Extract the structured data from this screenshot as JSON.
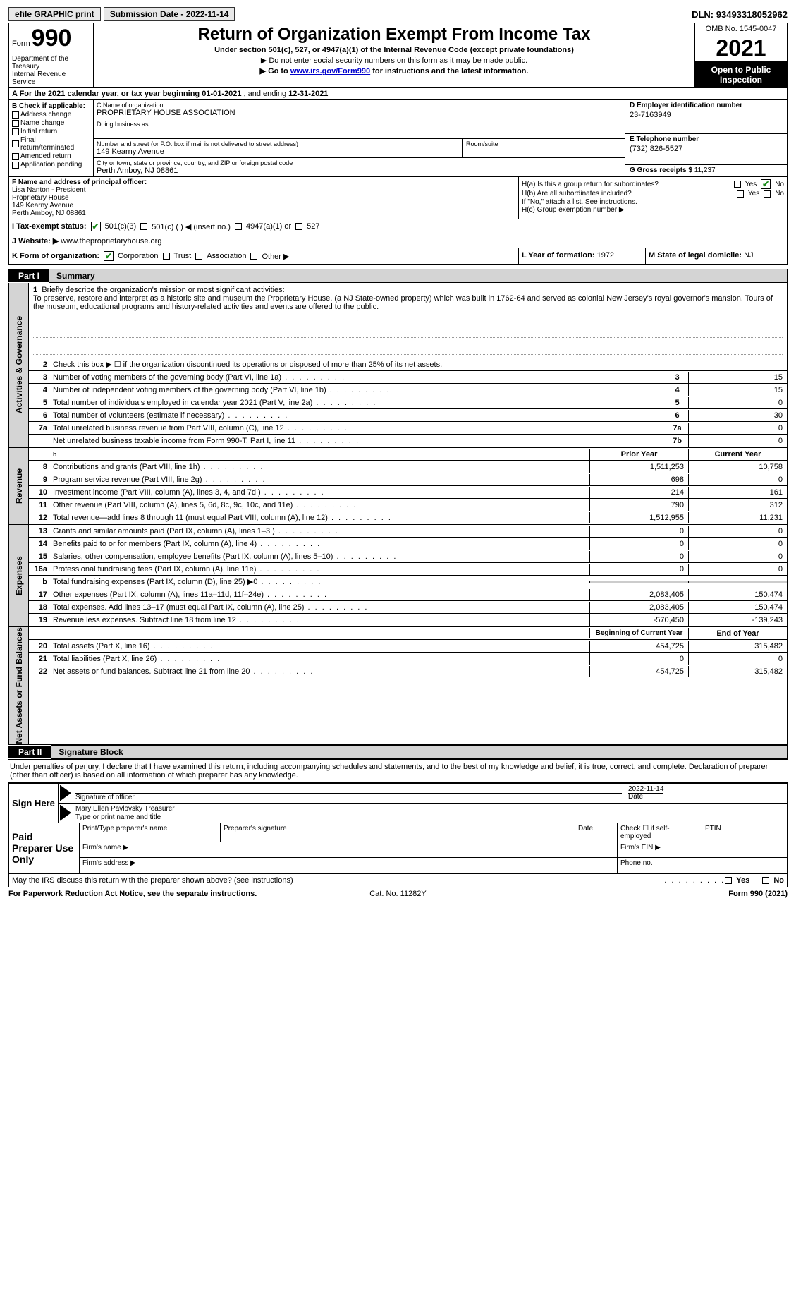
{
  "topbar": {
    "efile": "efile GRAPHIC print",
    "submission": "Submission Date - 2022-11-14",
    "dln_label": "DLN:",
    "dln": "93493318052962"
  },
  "header": {
    "form_word": "Form",
    "form_num": "990",
    "dept": "Department of the Treasury\nInternal Revenue Service",
    "title": "Return of Organization Exempt From Income Tax",
    "subtitle": "Under section 501(c), 527, or 4947(a)(1) of the Internal Revenue Code (except private foundations)",
    "note1": "▶ Do not enter social security numbers on this form as it may be made public.",
    "note2_pre": "▶ Go to ",
    "note2_link": "www.irs.gov/Form990",
    "note2_post": " for instructions and the latest information.",
    "omb": "OMB No. 1545-0047",
    "year": "2021",
    "inspect": "Open to Public Inspection"
  },
  "row_a": {
    "text_pre": "A For the 2021 calendar year, or tax year beginning ",
    "begin": "01-01-2021",
    "mid": "  , and ending ",
    "end": "12-31-2021"
  },
  "col_b": {
    "label": "B Check if applicable:",
    "opts": [
      "Address change",
      "Name change",
      "Initial return",
      "Final return/terminated",
      "Amended return",
      "Application pending"
    ]
  },
  "col_c": {
    "name_lbl": "C Name of organization",
    "name": "PROPRIETARY HOUSE ASSOCIATION",
    "dba_lbl": "Doing business as",
    "dba": "",
    "street_lbl": "Number and street (or P.O. box if mail is not delivered to street address)",
    "street": "149 Kearny Avenue",
    "room_lbl": "Room/suite",
    "city_lbl": "City or town, state or province, country, and ZIP or foreign postal code",
    "city": "Perth Amboy, NJ  08861"
  },
  "col_d": {
    "ein_lbl": "D Employer identification number",
    "ein": "23-7163949",
    "phone_lbl": "E Telephone number",
    "phone": "(732) 826-5527",
    "gross_lbl": "G Gross receipts $",
    "gross": "11,237"
  },
  "row_f": {
    "label": "F  Name and address of principal officer:",
    "lines": [
      "Lisa Nanton - President",
      "Proprietary House",
      "149 Kearny Avenue",
      "Perth Amboy, NJ  08861"
    ]
  },
  "row_h": {
    "ha": "H(a)  Is this a group return for subordinates?",
    "hb": "H(b)  Are all subordinates included?",
    "hb_note": "If \"No,\" attach a list. See instructions.",
    "hc": "H(c)  Group exemption number ▶",
    "yes": "Yes",
    "no": "No"
  },
  "row_i": {
    "label": "I   Tax-exempt status:",
    "opts": [
      "501(c)(3)",
      "501(c) (  ) ◀ (insert no.)",
      "4947(a)(1) or",
      "527"
    ]
  },
  "row_j": {
    "label": "J   Website: ▶",
    "val": " www.theproprietaryhouse.org"
  },
  "row_k": {
    "label": "K Form of organization:",
    "opts": [
      "Corporation",
      "Trust",
      "Association",
      "Other ▶"
    ],
    "l_label": "L Year of formation:",
    "l_val": "1972",
    "m_label": "M State of legal domicile:",
    "m_val": "NJ"
  },
  "part1": {
    "tab": "Part I",
    "title": "Summary"
  },
  "mission": {
    "num": "1",
    "label": "Briefly describe the organization's mission or most significant activities:",
    "text": "To preserve, restore and interpret as a historic site and museum the Proprietary House. (a NJ State-owned property) which was built in 1762-64 and served as colonial New Jersey's royal governor's mansion. Tours of the museum, educational programs and history-related activities and events are offered to the public."
  },
  "gov_lines": [
    {
      "n": "2",
      "t": "Check this box ▶ ☐  if the organization discontinued its operations or disposed of more than 25% of its net assets."
    },
    {
      "n": "3",
      "t": "Number of voting members of the governing body (Part VI, line 1a)",
      "b": "3",
      "v": "15"
    },
    {
      "n": "4",
      "t": "Number of independent voting members of the governing body (Part VI, line 1b)",
      "b": "4",
      "v": "15"
    },
    {
      "n": "5",
      "t": "Total number of individuals employed in calendar year 2021 (Part V, line 2a)",
      "b": "5",
      "v": "0"
    },
    {
      "n": "6",
      "t": "Total number of volunteers (estimate if necessary)",
      "b": "6",
      "v": "30"
    },
    {
      "n": "7a",
      "t": "Total unrelated business revenue from Part VIII, column (C), line 12",
      "b": "7a",
      "v": "0"
    },
    {
      "n": "",
      "t": "Net unrelated business taxable income from Form 990-T, Part I, line 11",
      "b": "7b",
      "v": "0"
    }
  ],
  "col_headers": {
    "prior": "Prior Year",
    "current": "Current Year"
  },
  "rev_lines": [
    {
      "n": "8",
      "t": "Contributions and grants (Part VIII, line 1h)",
      "p": "1,511,253",
      "c": "10,758"
    },
    {
      "n": "9",
      "t": "Program service revenue (Part VIII, line 2g)",
      "p": "698",
      "c": "0"
    },
    {
      "n": "10",
      "t": "Investment income (Part VIII, column (A), lines 3, 4, and 7d )",
      "p": "214",
      "c": "161"
    },
    {
      "n": "11",
      "t": "Other revenue (Part VIII, column (A), lines 5, 6d, 8c, 9c, 10c, and 11e)",
      "p": "790",
      "c": "312"
    },
    {
      "n": "12",
      "t": "Total revenue—add lines 8 through 11 (must equal Part VIII, column (A), line 12)",
      "p": "1,512,955",
      "c": "11,231"
    }
  ],
  "exp_lines": [
    {
      "n": "13",
      "t": "Grants and similar amounts paid (Part IX, column (A), lines 1–3 )",
      "p": "0",
      "c": "0"
    },
    {
      "n": "14",
      "t": "Benefits paid to or for members (Part IX, column (A), line 4)",
      "p": "0",
      "c": "0"
    },
    {
      "n": "15",
      "t": "Salaries, other compensation, employee benefits (Part IX, column (A), lines 5–10)",
      "p": "0",
      "c": "0"
    },
    {
      "n": "16a",
      "t": "Professional fundraising fees (Part IX, column (A), line 11e)",
      "p": "0",
      "c": "0"
    },
    {
      "n": "b",
      "t": "Total fundraising expenses (Part IX, column (D), line 25) ▶0",
      "p": "",
      "c": "",
      "gray": true
    },
    {
      "n": "17",
      "t": "Other expenses (Part IX, column (A), lines 11a–11d, 11f–24e)",
      "p": "2,083,405",
      "c": "150,474"
    },
    {
      "n": "18",
      "t": "Total expenses. Add lines 13–17 (must equal Part IX, column (A), line 25)",
      "p": "2,083,405",
      "c": "150,474"
    },
    {
      "n": "19",
      "t": "Revenue less expenses. Subtract line 18 from line 12",
      "p": "-570,450",
      "c": "-139,243"
    }
  ],
  "net_headers": {
    "begin": "Beginning of Current Year",
    "end": "End of Year"
  },
  "net_lines": [
    {
      "n": "20",
      "t": "Total assets (Part X, line 16)",
      "p": "454,725",
      "c": "315,482"
    },
    {
      "n": "21",
      "t": "Total liabilities (Part X, line 26)",
      "p": "0",
      "c": "0"
    },
    {
      "n": "22",
      "t": "Net assets or fund balances. Subtract line 21 from line 20",
      "p": "454,725",
      "c": "315,482"
    }
  ],
  "vlabels": {
    "gov": "Activities & Governance",
    "rev": "Revenue",
    "exp": "Expenses",
    "net": "Net Assets or Fund Balances"
  },
  "part2": {
    "tab": "Part II",
    "title": "Signature Block"
  },
  "sig_intro": "Under penalties of perjury, I declare that I have examined this return, including accompanying schedules and statements, and to the best of my knowledge and belief, it is true, correct, and complete. Declaration of preparer (other than officer) is based on all information of which preparer has any knowledge.",
  "sign": {
    "here": "Sign Here",
    "sig_lbl": "Signature of officer",
    "date_lbl": "Date",
    "date": "2022-11-14",
    "name": "Mary Ellen Pavlovsky  Treasurer",
    "name_lbl": "Type or print name and title"
  },
  "prep": {
    "label": "Paid Preparer Use Only",
    "h1": "Print/Type preparer's name",
    "h2": "Preparer's signature",
    "h3": "Date",
    "h4": "Check ☐ if self-employed",
    "h5": "PTIN",
    "firm_name": "Firm's name    ▶",
    "firm_ein": "Firm's EIN ▶",
    "firm_addr": "Firm's address ▶",
    "phone": "Phone no."
  },
  "discuss": {
    "text": "May the IRS discuss this return with the preparer shown above? (see instructions)",
    "yes": "Yes",
    "no": "No"
  },
  "footer": {
    "l": "For Paperwork Reduction Act Notice, see the separate instructions.",
    "c": "Cat. No. 11282Y",
    "r": "Form 990 (2021)"
  }
}
